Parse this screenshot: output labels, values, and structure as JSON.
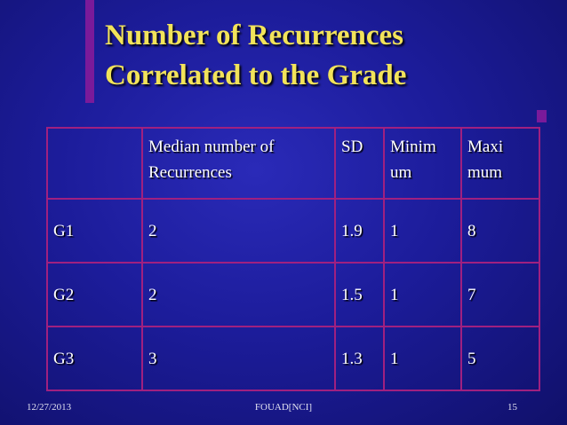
{
  "title": [
    "Number of Recurrences",
    "Correlated to the Grade"
  ],
  "table": {
    "header": [
      "Median number of\nRecurrences",
      "SD",
      "Minim\num",
      "Maxi\nmum"
    ],
    "rows": [
      [
        "G1",
        "2",
        "1.9",
        "1",
        "8"
      ],
      [
        "G2",
        "2",
        "1.5",
        "1",
        "7"
      ],
      [
        "G3",
        "3",
        "1.3",
        "1",
        "5"
      ]
    ]
  },
  "footer": {
    "date": "12/27/2013",
    "author": "FOUAD[NCI]",
    "page": "15"
  }
}
